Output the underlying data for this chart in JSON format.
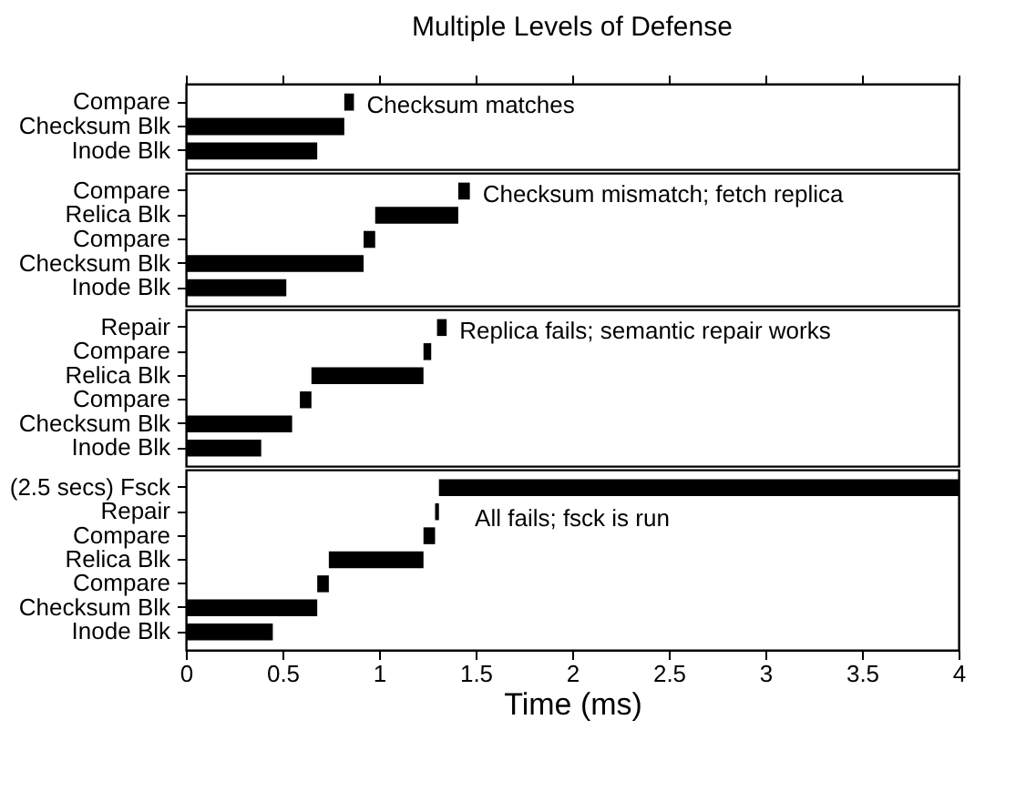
{
  "chart_data": [
    {
      "type": "bar",
      "orientation": "horizontal",
      "title": "Multiple Levels of Defense",
      "categories": [
        "Compare",
        "Checksum Blk",
        "Inode Blk"
      ],
      "base": [
        0.82,
        0,
        0
      ],
      "values": [
        0.05,
        0.82,
        0.68
      ],
      "color": "#000000",
      "xlim": [
        0,
        4
      ],
      "xticks": [
        0,
        0.5,
        1,
        1.5,
        2,
        2.5,
        3,
        3.5,
        4
      ],
      "tick_labels": "y",
      "grid": false,
      "annotations": [
        "Checksum matches"
      ]
    },
    {
      "type": "bar",
      "orientation": "horizontal",
      "categories": [
        "Compare",
        "Relica Blk",
        "Compare",
        "Checksum Blk",
        "Inode Blk"
      ],
      "base": [
        1.41,
        0.98,
        0.92,
        0,
        0
      ],
      "values": [
        0.06,
        0.43,
        0.06,
        0.92,
        0.52
      ],
      "color": "#000000",
      "xlim": [
        0,
        4
      ],
      "xticks": [
        0,
        0.5,
        1,
        1.5,
        2,
        2.5,
        3,
        3.5,
        4
      ],
      "tick_labels": "y",
      "grid": false,
      "annotations": [
        "Checksum mismatch; fetch replica"
      ]
    },
    {
      "type": "bar",
      "orientation": "horizontal",
      "categories": [
        "Repair",
        "Compare",
        "Relica Blk",
        "Compare",
        "Checksum Blk",
        "Inode Blk"
      ],
      "base": [
        1.3,
        1.23,
        0.65,
        0.59,
        0,
        0
      ],
      "values": [
        0.05,
        0.04,
        0.58,
        0.06,
        0.55,
        0.39
      ],
      "color": "#000000",
      "xlim": [
        0,
        4
      ],
      "xticks": [
        0,
        0.5,
        1,
        1.5,
        2,
        2.5,
        3,
        3.5,
        4
      ],
      "tick_labels": "y",
      "grid": false,
      "annotations": [
        "Replica fails; semantic repair works"
      ]
    },
    {
      "type": "bar",
      "orientation": "horizontal",
      "xlabel": "Time (ms)",
      "categories": [
        "(2.5 secs) Fsck",
        "Repair",
        "Compare",
        "Relica Blk",
        "Compare",
        "Checksum Blk",
        "Inode Blk"
      ],
      "base": [
        1.31,
        1.29,
        1.23,
        0.74,
        0.68,
        0,
        0
      ],
      "values": [
        2.69,
        0.02,
        0.06,
        0.49,
        0.06,
        0.68,
        0.45
      ],
      "color": "#000000",
      "xlim": [
        0,
        4
      ],
      "xticks": [
        0,
        0.5,
        1,
        1.5,
        2,
        2.5,
        3,
        3.5,
        4
      ],
      "grid": false,
      "annotations": [
        "All fails; fsck is run"
      ]
    }
  ]
}
